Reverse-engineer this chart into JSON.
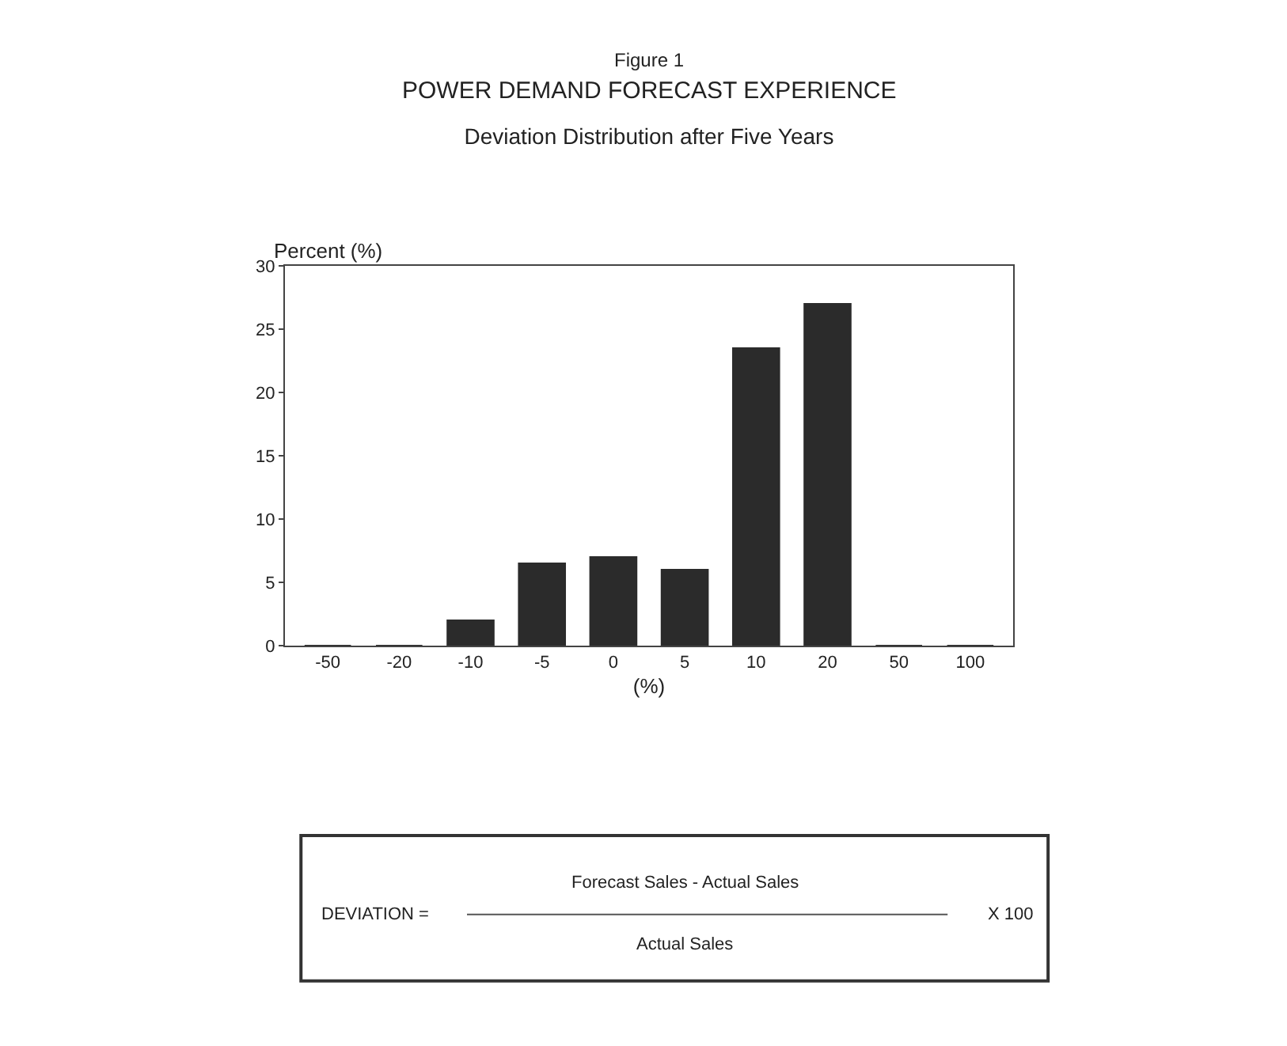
{
  "chart_data": {
    "type": "bar",
    "title": "POWER DEMAND FORECAST EXPERIENCE",
    "subtitle": "Deviation Distribution after Five Years",
    "xlabel": "(%)",
    "ylabel": "Percent (%)",
    "categories": [
      "-50",
      "-20",
      "-10",
      "-5",
      "0",
      "5",
      "10",
      "20",
      "50",
      "100"
    ],
    "values": [
      0,
      0,
      2.0,
      6.5,
      7.0,
      6.0,
      23.5,
      27.0,
      0,
      0
    ],
    "color": "#2b2b2b",
    "ylim": [
      0,
      30
    ],
    "yticks": [
      0,
      5,
      10,
      15,
      20,
      25,
      30
    ],
    "annotations": [
      "Figure 1",
      "DEVIATION =",
      "Forecast Sales - Actual Sales",
      "Actual Sales",
      "X 100"
    ]
  }
}
